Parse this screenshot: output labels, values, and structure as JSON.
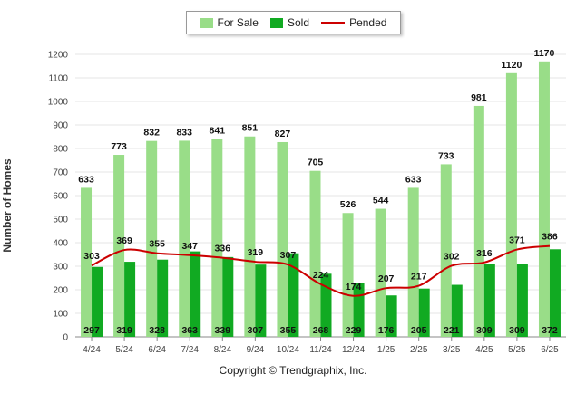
{
  "chart_data": {
    "type": "bar",
    "categories": [
      "4/24",
      "5/24",
      "6/24",
      "7/24",
      "8/24",
      "9/24",
      "10/24",
      "11/24",
      "12/24",
      "1/25",
      "2/25",
      "3/25",
      "4/25",
      "5/25",
      "6/25"
    ],
    "series": [
      {
        "name": "For Sale",
        "type": "bar",
        "color": "#99dd88",
        "values": [
          633,
          773,
          832,
          833,
          841,
          851,
          827,
          705,
          526,
          544,
          633,
          733,
          981,
          1120,
          1170
        ]
      },
      {
        "name": "Sold",
        "type": "bar",
        "color": "#11aa22",
        "values": [
          297,
          319,
          328,
          363,
          339,
          307,
          355,
          268,
          229,
          176,
          205,
          221,
          309,
          309,
          372
        ]
      },
      {
        "name": "Pended",
        "type": "line",
        "color": "#cc0000",
        "values": [
          303,
          369,
          355,
          347,
          336,
          319,
          307,
          224,
          174,
          207,
          217,
          302,
          316,
          371,
          386
        ]
      }
    ],
    "xlabel": "",
    "ylabel": "Number of Homes",
    "ylim": [
      0,
      1200
    ],
    "yticks": [
      0,
      100,
      200,
      300,
      400,
      500,
      600,
      700,
      800,
      900,
      1000,
      1100,
      1200
    ],
    "grid": true,
    "legend": "top-center"
  },
  "footer": {
    "copyright": "Copyright © Trendgraphix, Inc."
  }
}
